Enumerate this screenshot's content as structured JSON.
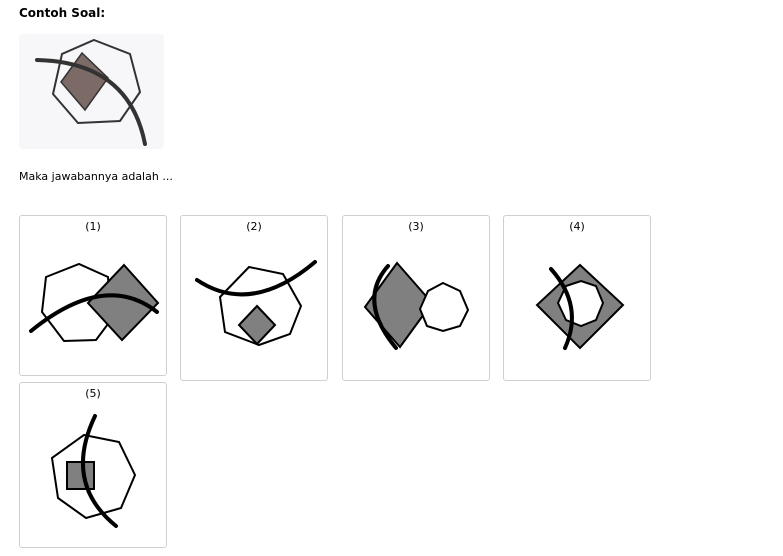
{
  "header": {
    "title": "Contoh Soal:"
  },
  "question": {
    "text": "Maka jawabannya adalah ..."
  },
  "options": [
    {
      "label": "(1)"
    },
    {
      "label": "(2)"
    },
    {
      "label": "(3)"
    },
    {
      "label": "(4)"
    },
    {
      "label": "(5)"
    }
  ],
  "colors": {
    "example_fill": "#7b6a66",
    "option_fill": "#808080",
    "stroke": "#000000",
    "example_stroke": "#333333",
    "panel_border": "#cfcfcf"
  }
}
